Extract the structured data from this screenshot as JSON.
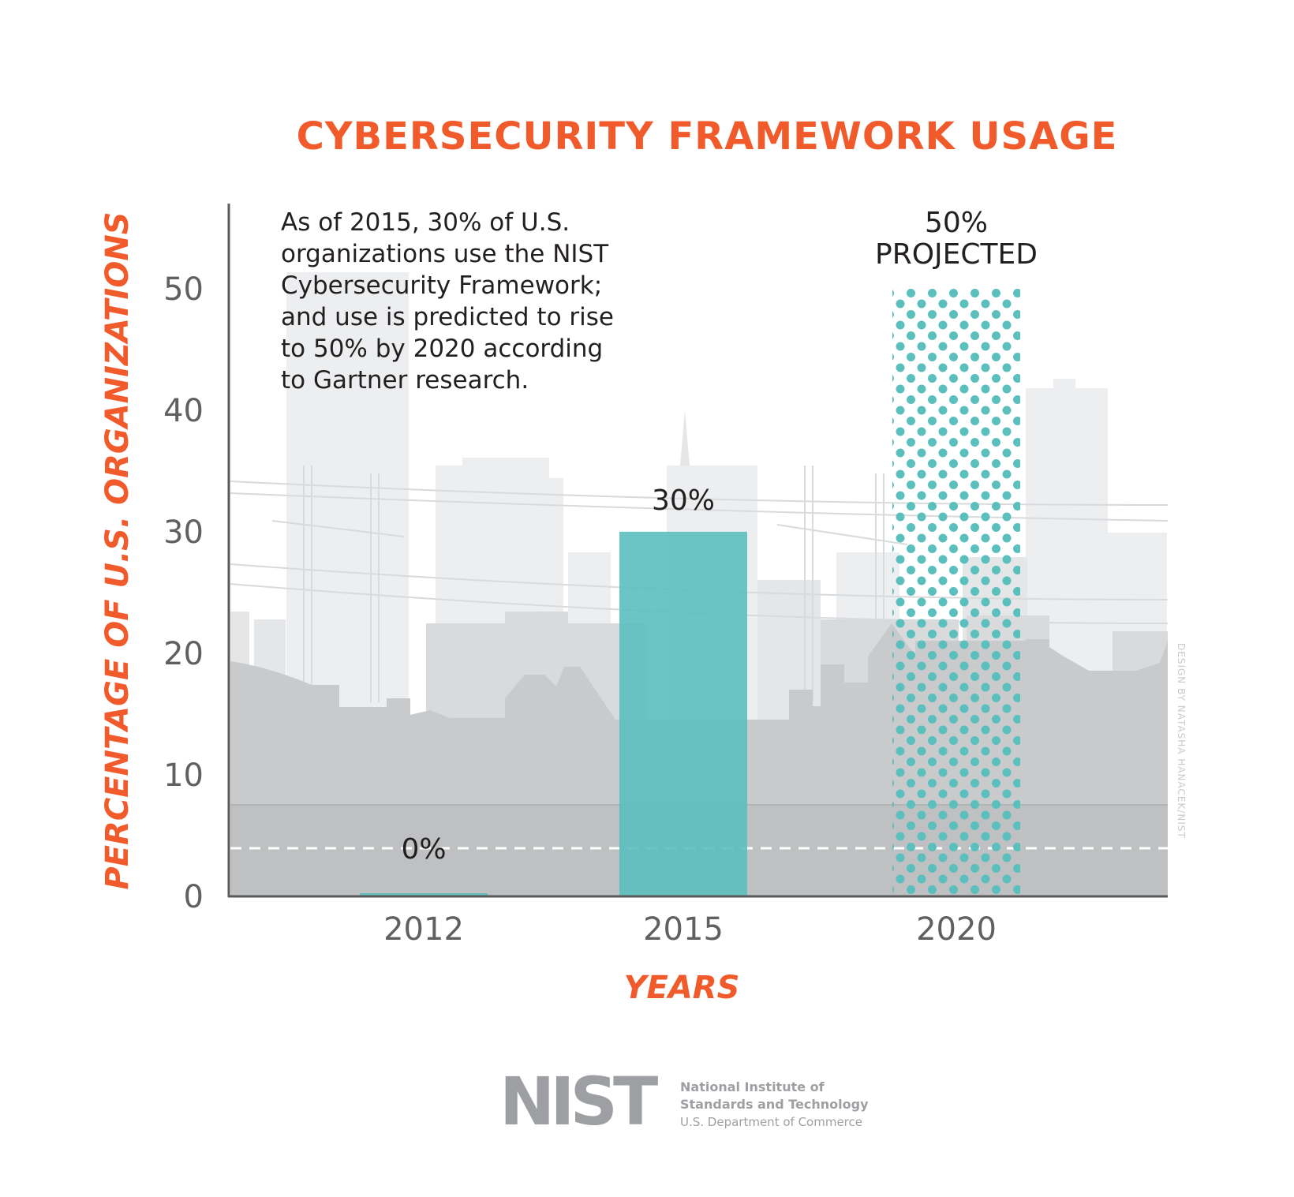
{
  "chart_data": {
    "type": "bar",
    "title": "CYBERSECURITY FRAMEWORK USAGE",
    "xlabel": "YEARS",
    "ylabel": "PERCENTAGE OF U.S. ORGANIZATIONS",
    "categories": [
      "2012",
      "2015",
      "2020"
    ],
    "values": [
      0,
      30,
      50
    ],
    "data_labels": [
      "0%",
      "30%",
      "50%"
    ],
    "projected_label": "PROJECTED",
    "projected": [
      false,
      false,
      true
    ],
    "ylim": [
      0,
      57
    ],
    "yticks": [
      0,
      10,
      20,
      30,
      40,
      50
    ],
    "grid": false,
    "annotation": [
      "As of 2015, 30% of U.S.",
      "organizations use the NIST",
      "Cybersecurity Framework;",
      "and use is predicted to rise",
      "to 50% by 2020 according",
      "to Gartner research."
    ]
  },
  "colors": {
    "title": "#f15a2b",
    "bar": "#5bbfbe",
    "projected_dots": "#5bbfbe",
    "axis": "#5a5a5a",
    "tick_text": "#5f6062",
    "label_text": "#231f20",
    "skyline_light": "#eceef0",
    "skyline_mid": "#d9dadc",
    "skyline_dark": "#c9cacc"
  },
  "credit": "DESIGN BY NATASHA HANACEK/NIST",
  "logo": {
    "mark": "NIST",
    "org_line1": "National Institute of",
    "org_line2": "Standards and Technology",
    "dept": "U.S. Department of Commerce"
  }
}
